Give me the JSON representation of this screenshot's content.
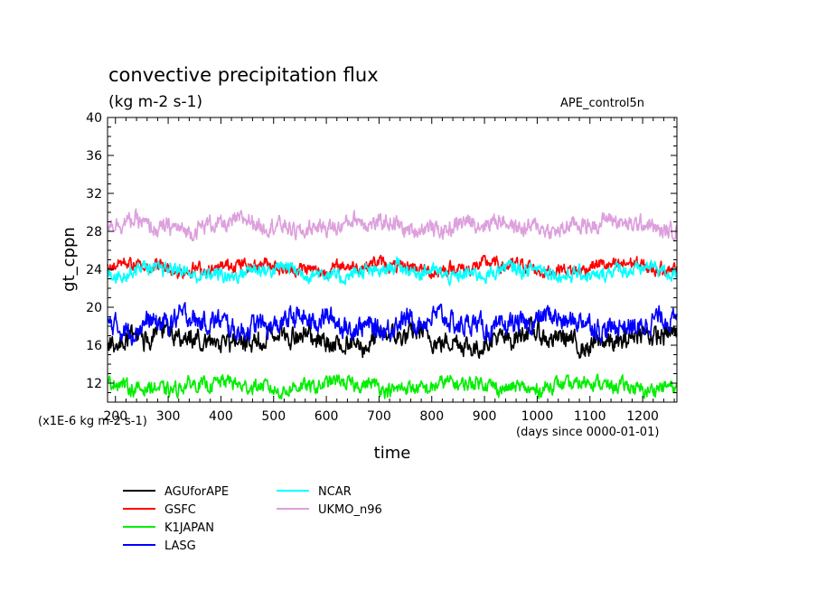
{
  "chart_data": {
    "type": "line",
    "title": "convective precipitation flux",
    "subtitle": "(kg m-2 s-1)",
    "run_label": "APE_control5n",
    "xlabel": "time",
    "ylabel": "gt_cppn",
    "x_unit_note": "(days since 0000-01-01)",
    "y_unit_note": "(x1E-6 kg m-2 s-1)",
    "xlim": [
      185,
      1265
    ],
    "ylim": [
      10,
      40
    ],
    "x_ticks": [
      200,
      300,
      400,
      500,
      600,
      700,
      800,
      900,
      1000,
      1100,
      1200
    ],
    "y_ticks": [
      12,
      16,
      20,
      24,
      28,
      32,
      36,
      40
    ],
    "legend_position": "below-left",
    "series": [
      {
        "name": "AGUforAPE",
        "color": "#000000",
        "mean": 16.6,
        "noise": 0.85,
        "wave": 0.6
      },
      {
        "name": "GSFC",
        "color": "#ff0000",
        "mean": 24.2,
        "noise": 0.55,
        "wave": 0.35
      },
      {
        "name": "K1JAPAN",
        "color": "#00ee00",
        "mean": 11.7,
        "noise": 0.6,
        "wave": 0.35
      },
      {
        "name": "LASG",
        "color": "#0000ff",
        "mean": 18.3,
        "noise": 0.9,
        "wave": 0.55
      },
      {
        "name": "NCAR",
        "color": "#00ffff",
        "mean": 23.7,
        "noise": 0.6,
        "wave": 0.4
      },
      {
        "name": "UKMO_n96",
        "color": "#dda0dd",
        "mean": 28.6,
        "noise": 0.7,
        "wave": 0.45
      }
    ]
  }
}
